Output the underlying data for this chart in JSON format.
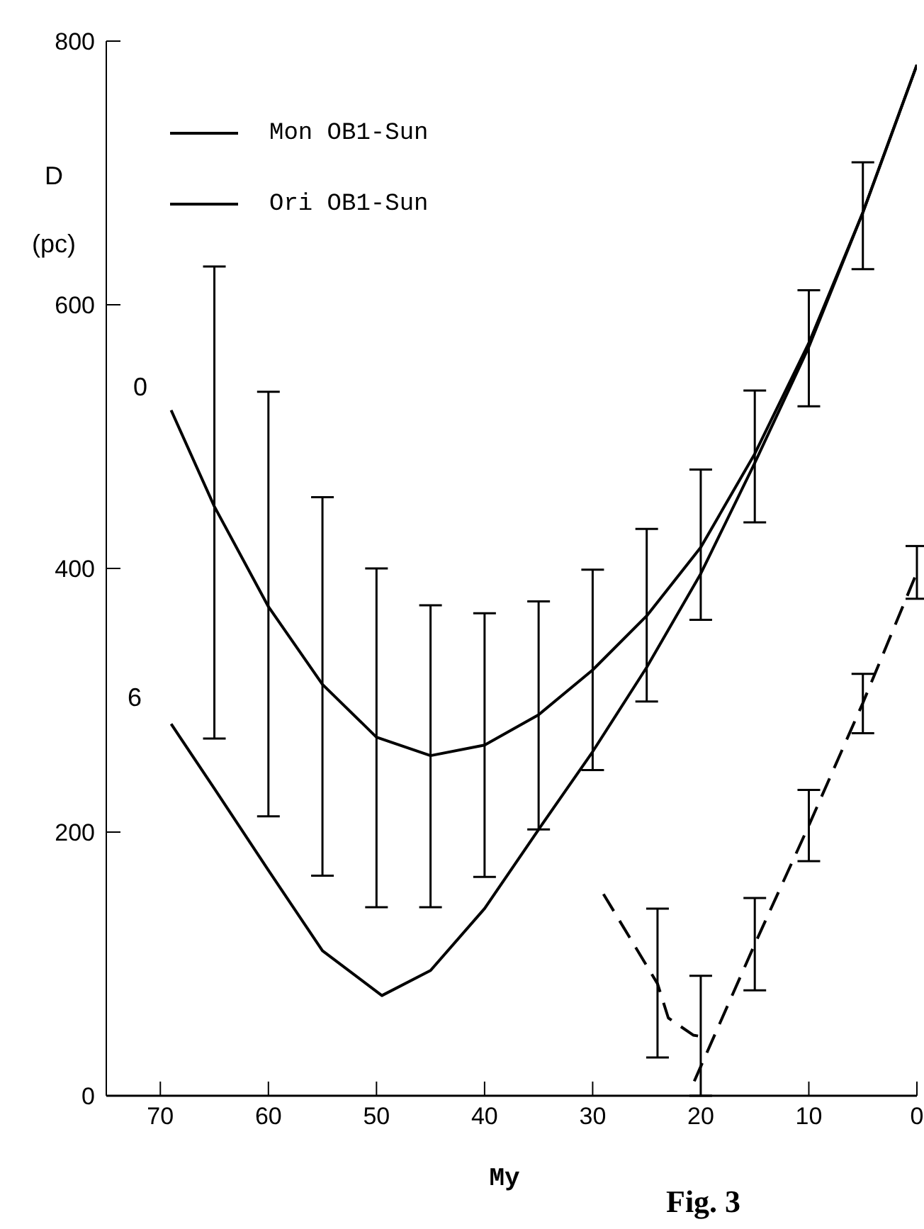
{
  "chart_data": {
    "type": "line",
    "xlabel": "My",
    "ylabel": "D (pc)",
    "xlim": [
      75,
      0
    ],
    "xticks": [
      70,
      60,
      50,
      40,
      30,
      20,
      10,
      0
    ],
    "ylim": [
      0,
      800
    ],
    "yticks": [
      0,
      200,
      400,
      600,
      800
    ],
    "grid": false,
    "legend": "top left",
    "marker": "none",
    "line_style": "solid",
    "annotations": [
      "0",
      "6",
      "Fig. 3"
    ],
    "series": [
      {
        "name": "Mon OB1-Sun",
        "color": "#000000",
        "x": [
          69,
          65,
          60,
          55,
          50,
          45,
          40,
          35,
          30,
          25,
          20,
          15,
          10,
          5,
          0
        ],
        "values": [
          520,
          447,
          371,
          312,
          272,
          258,
          266,
          289,
          323,
          364,
          416,
          487,
          571,
          670,
          782
        ],
        "errors": [
          null,
          [
            271,
            629
          ],
          [
            212,
            534
          ],
          [
            167,
            454
          ],
          [
            143,
            400
          ],
          [
            143,
            372
          ],
          [
            166,
            366
          ],
          [
            202,
            375
          ],
          [
            247,
            399
          ],
          [
            299,
            430
          ],
          [
            361,
            475
          ],
          [
            435,
            535
          ],
          [
            523,
            611
          ],
          [
            627,
            708
          ],
          null
        ]
      },
      {
        "name": "Ori OB1-Sun",
        "color": "#000000",
        "x": [
          69,
          65,
          60,
          55,
          49.5,
          45,
          40,
          35,
          30,
          25,
          20,
          15,
          10,
          5,
          0
        ],
        "values": [
          282,
          233,
          171,
          110,
          76,
          95,
          142,
          202,
          261,
          325,
          396,
          480,
          568,
          670,
          782
        ]
      },
      {
        "color": "#000000",
        "line_style": "dashed",
        "x": [
          29,
          24,
          23,
          20.7,
          20
        ],
        "values": [
          153,
          85,
          59,
          46,
          45
        ],
        "errors": [
          null,
          [
            29,
            142
          ],
          null,
          null,
          [
            0,
            91
          ]
        ]
      },
      {
        "color": "#000000",
        "line_style": "dashed",
        "x": [
          20.6,
          15,
          10,
          5,
          0
        ],
        "values": [
          11,
          115,
          205,
          298,
          397
        ],
        "errors": [
          null,
          [
            80,
            150
          ],
          [
            178,
            232
          ],
          [
            275,
            320
          ],
          [
            377,
            417
          ]
        ]
      }
    ]
  }
}
